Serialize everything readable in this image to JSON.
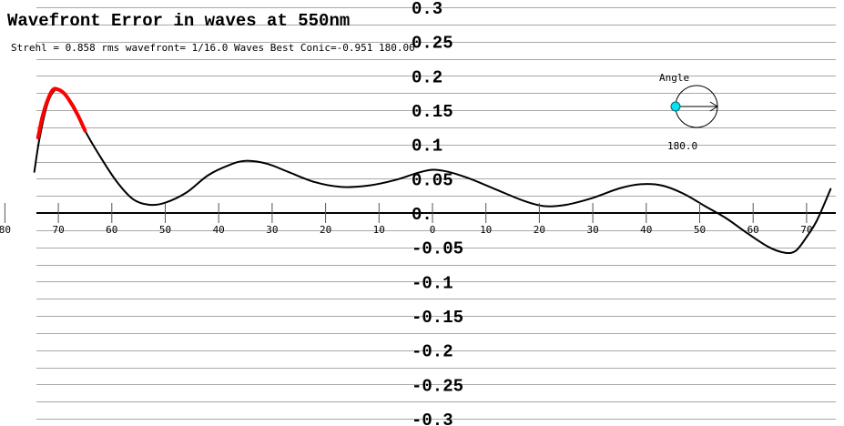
{
  "chart_data": {
    "type": "line",
    "title": "Wavefront Error in waves at 550nm",
    "subtitle": "Strehl = 0.858 rms wavefront= 1/16.0 Waves Best Conic=-0.951 180.00",
    "ylim": [
      -0.3,
      0.3
    ],
    "xlim": [
      -80,
      75
    ],
    "y_ticks": [
      "0.3",
      "0.25",
      "0.2",
      "0.15",
      "0.1",
      "0.05",
      "0.",
      "-0.05",
      "-0.1",
      "-0.15",
      "-0.2",
      "-0.25",
      "-0.3"
    ],
    "x_ticks": [
      {
        "x": -80,
        "label": "80"
      },
      {
        "x": -70,
        "label": "70"
      },
      {
        "x": -60,
        "label": "60"
      },
      {
        "x": -50,
        "label": "50"
      },
      {
        "x": -40,
        "label": "40"
      },
      {
        "x": -30,
        "label": "30"
      },
      {
        "x": -20,
        "label": "20"
      },
      {
        "x": -10,
        "label": "10"
      },
      {
        "x": 0,
        "label": "0"
      },
      {
        "x": 10,
        "label": "10"
      },
      {
        "x": 20,
        "label": "20"
      },
      {
        "x": 30,
        "label": "30"
      },
      {
        "x": 40,
        "label": "40"
      },
      {
        "x": 50,
        "label": "50"
      },
      {
        "x": 60,
        "label": "60"
      },
      {
        "x": 70,
        "label": "70"
      }
    ],
    "grid": true,
    "series": [
      {
        "color": "#000000",
        "points": [
          [
            -74.5,
            0.06
          ],
          [
            -73.5,
            0.11
          ],
          [
            -72,
            0.16
          ],
          [
            -70.5,
            0.18
          ],
          [
            -69,
            0.175
          ],
          [
            -67,
            0.155
          ],
          [
            -65,
            0.12
          ],
          [
            -62,
            0.08
          ],
          [
            -59,
            0.045
          ],
          [
            -56,
            0.02
          ],
          [
            -53,
            0.012
          ],
          [
            -50,
            0.015
          ],
          [
            -46,
            0.03
          ],
          [
            -42,
            0.055
          ],
          [
            -38,
            0.07
          ],
          [
            -35,
            0.076
          ],
          [
            -31,
            0.072
          ],
          [
            -27,
            0.06
          ],
          [
            -22,
            0.045
          ],
          [
            -17,
            0.038
          ],
          [
            -12,
            0.04
          ],
          [
            -7,
            0.048
          ],
          [
            -3,
            0.058
          ],
          [
            0,
            0.063
          ],
          [
            3,
            0.06
          ],
          [
            7,
            0.05
          ],
          [
            12,
            0.034
          ],
          [
            17,
            0.018
          ],
          [
            21,
            0.01
          ],
          [
            25,
            0.012
          ],
          [
            30,
            0.022
          ],
          [
            35,
            0.036
          ],
          [
            39,
            0.042
          ],
          [
            43,
            0.04
          ],
          [
            47,
            0.028
          ],
          [
            51,
            0.01
          ],
          [
            55,
            -0.008
          ],
          [
            59,
            -0.03
          ],
          [
            63,
            -0.05
          ],
          [
            66,
            -0.058
          ],
          [
            68,
            -0.055
          ],
          [
            70,
            -0.035
          ],
          [
            72,
            -0.01
          ],
          [
            74.5,
            0.035
          ]
        ]
      },
      {
        "color": "#ff0000",
        "points": [
          [
            -73.8,
            0.11
          ],
          [
            -73,
            0.14
          ],
          [
            -72,
            0.165
          ],
          [
            -71,
            0.18
          ],
          [
            -70,
            0.18
          ],
          [
            -69,
            0.175
          ],
          [
            -68,
            0.165
          ],
          [
            -66.5,
            0.145
          ],
          [
            -65,
            0.12
          ]
        ]
      }
    ],
    "angle_indicator": {
      "label": "Angle",
      "value": "180.0",
      "marker_color": "#00e5ee"
    }
  }
}
